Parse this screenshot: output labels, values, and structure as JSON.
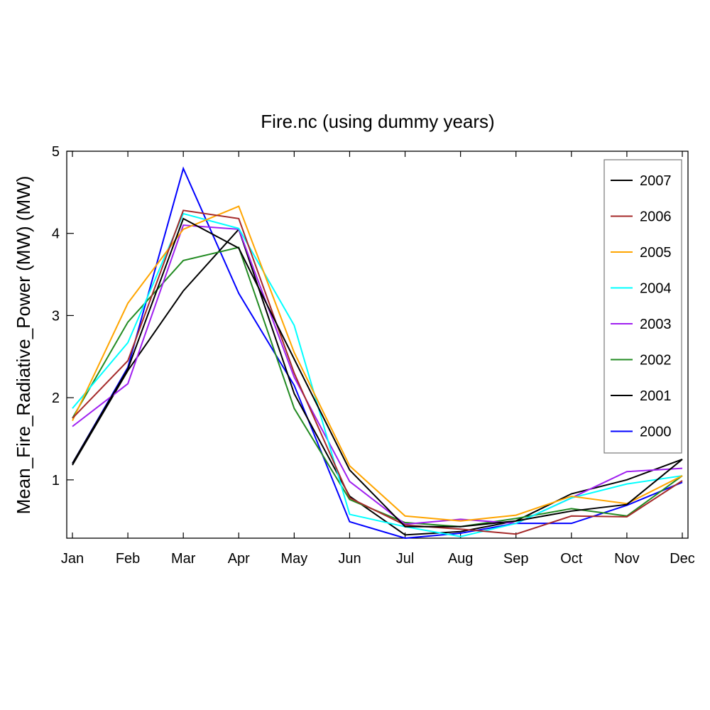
{
  "chart_data": {
    "type": "line",
    "title": "Fire.nc (using dummy years)",
    "xlabel": "",
    "ylabel": "Mean_Fire_Radiative_Power (MW) (MW)",
    "categories": [
      "Jan",
      "Feb",
      "Mar",
      "Apr",
      "May",
      "Jun",
      "Jul",
      "Aug",
      "Sep",
      "Oct",
      "Nov",
      "Dec"
    ],
    "yticks": [
      1,
      2,
      3,
      4,
      5
    ],
    "ylim": [
      0.29,
      5
    ],
    "grid": false,
    "legend_position": "top-right",
    "series": [
      {
        "name": "2007",
        "color": "#000000",
        "values": [
          1.2,
          2.35,
          4.18,
          3.82,
          2.47,
          1.12,
          0.43,
          0.43,
          0.5,
          0.62,
          0.7,
          1.25
        ]
      },
      {
        "name": "2006",
        "color": "#a52a2a",
        "values": [
          1.75,
          2.45,
          4.28,
          4.18,
          2.3,
          0.78,
          0.45,
          0.4,
          0.34,
          0.56,
          0.55,
          0.99
        ]
      },
      {
        "name": "2005",
        "color": "#ffa500",
        "values": [
          1.72,
          3.15,
          4.05,
          4.33,
          2.55,
          1.17,
          0.56,
          0.5,
          0.57,
          0.8,
          0.71,
          1.05
        ]
      },
      {
        "name": "2004",
        "color": "#00ffff",
        "values": [
          1.87,
          2.67,
          4.24,
          4.06,
          2.88,
          0.58,
          0.43,
          0.31,
          0.47,
          0.78,
          0.95,
          1.05
        ]
      },
      {
        "name": "2003",
        "color": "#a020f0",
        "values": [
          1.65,
          2.17,
          4.1,
          4.05,
          2.25,
          0.98,
          0.46,
          0.52,
          0.47,
          0.78,
          1.1,
          1.14
        ]
      },
      {
        "name": "2002",
        "color": "#228b22",
        "values": [
          1.75,
          2.92,
          3.67,
          3.83,
          1.87,
          0.76,
          0.48,
          0.43,
          0.53,
          0.65,
          0.56,
          1.05
        ]
      },
      {
        "name": "2001",
        "color": "#000000",
        "values": [
          1.18,
          2.33,
          3.3,
          4.05,
          2.05,
          0.8,
          0.33,
          0.37,
          0.5,
          0.83,
          1.0,
          1.25
        ]
      },
      {
        "name": "2000",
        "color": "#0000ff",
        "values": [
          1.2,
          2.37,
          4.79,
          3.27,
          2.15,
          0.49,
          0.29,
          0.35,
          0.47,
          0.47,
          0.69,
          0.97
        ]
      }
    ]
  }
}
